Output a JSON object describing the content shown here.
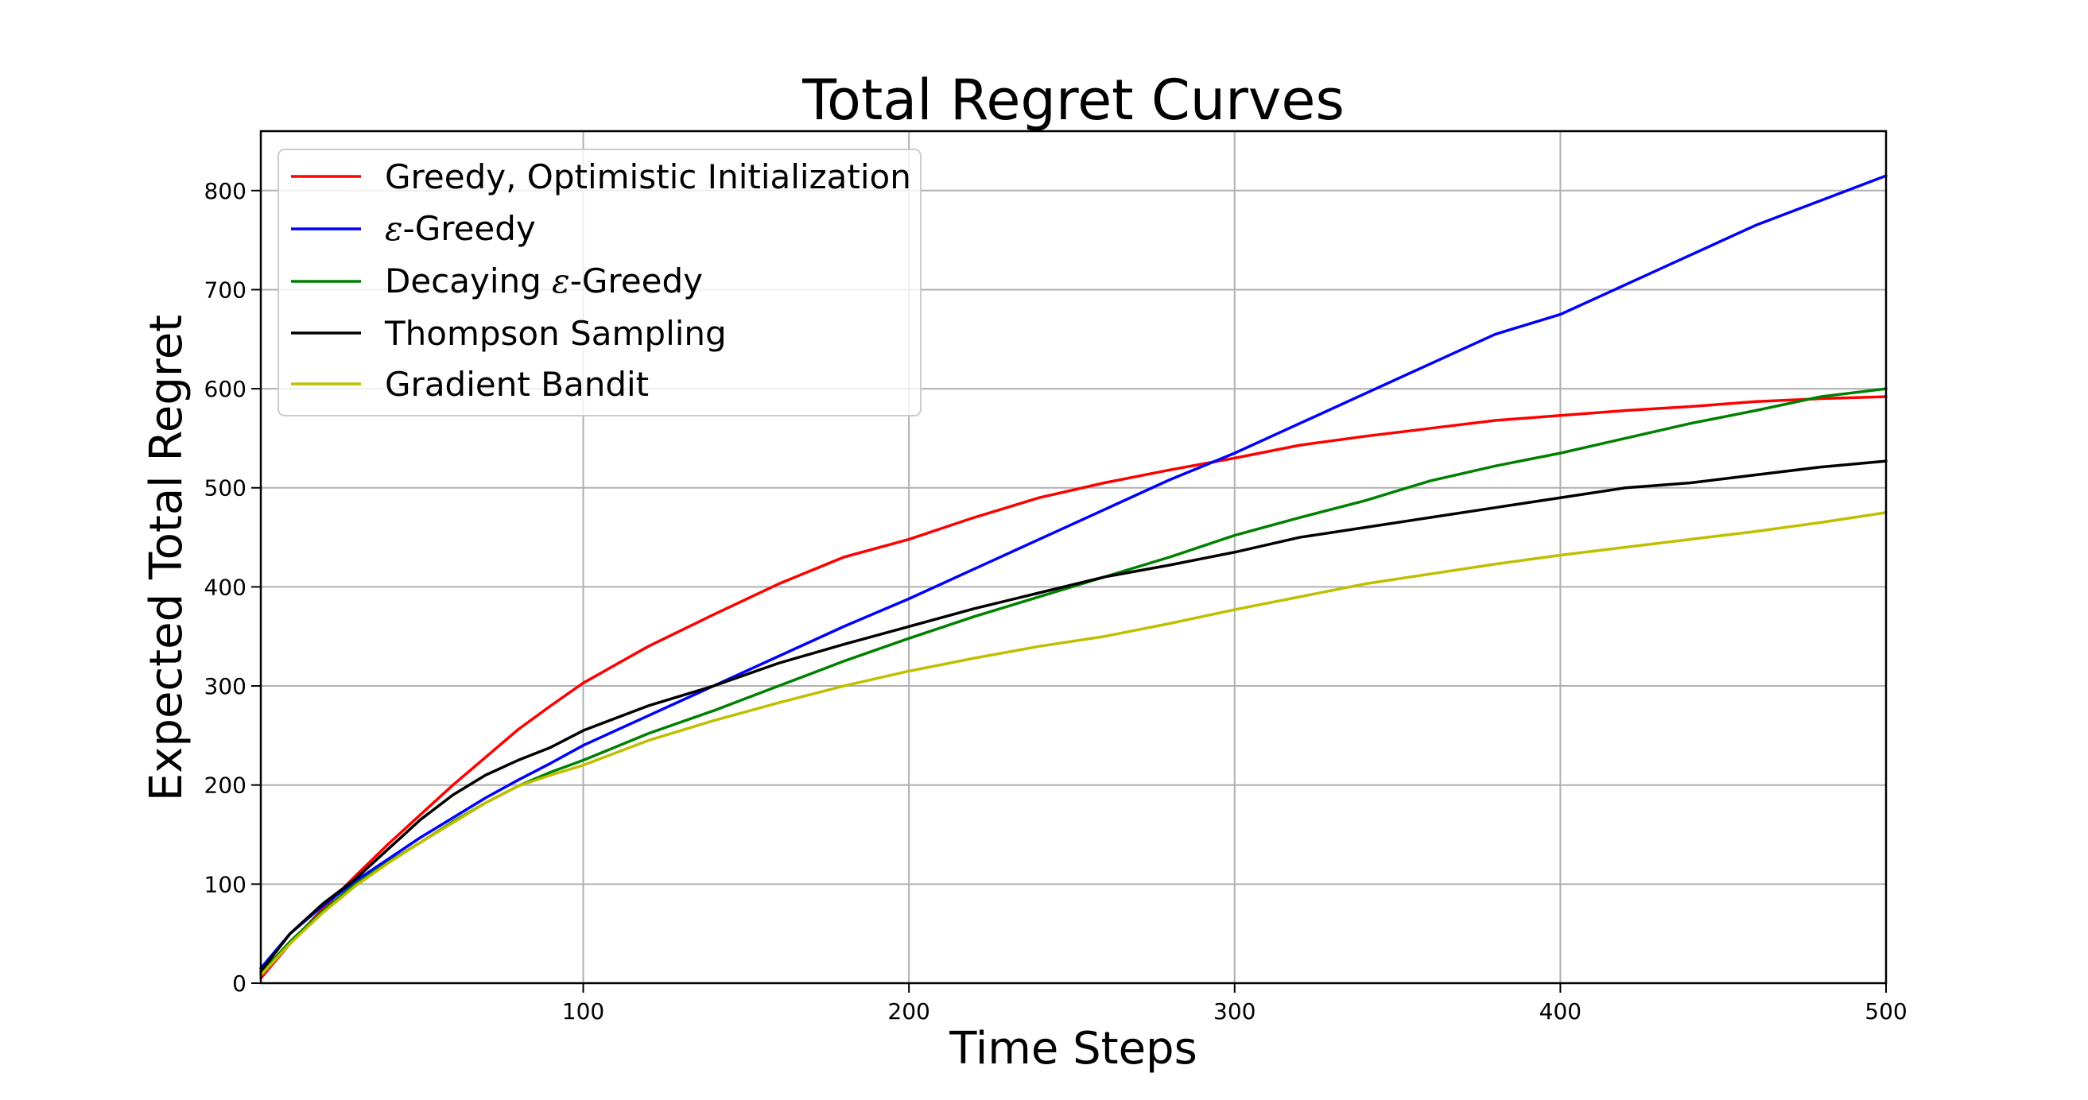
{
  "chart_data": {
    "type": "line",
    "title": "Total Regret Curves",
    "xlabel": "Time Steps",
    "ylabel": "Expected Total Regret",
    "xlim": [
      1,
      500
    ],
    "ylim": [
      0,
      860
    ],
    "grid": true,
    "legend_position": "top-left",
    "x_ticks": [
      100,
      200,
      300,
      400,
      500
    ],
    "y_ticks": [
      0,
      100,
      200,
      300,
      400,
      500,
      600,
      700,
      800
    ],
    "x_tick_labels": [
      "100",
      "200",
      "300",
      "400",
      "500"
    ],
    "y_tick_labels": [
      "0",
      "100",
      "200",
      "300",
      "400",
      "500",
      "600",
      "700",
      "800"
    ],
    "x": [
      1,
      10,
      20,
      30,
      40,
      50,
      60,
      70,
      80,
      90,
      100,
      120,
      140,
      160,
      180,
      200,
      220,
      240,
      260,
      280,
      300,
      320,
      340,
      360,
      380,
      400,
      420,
      440,
      460,
      480,
      500
    ],
    "series": [
      {
        "name": "Greedy, Optimistic Initialization",
        "legend_label": "Greedy, Optimistic Initialization",
        "color": "#ff0000",
        "values": [
          5,
          40,
          75,
          108,
          140,
          170,
          200,
          228,
          256,
          280,
          303,
          340,
          372,
          403,
          430,
          448,
          470,
          490,
          505,
          518,
          530,
          543,
          552,
          560,
          568,
          573,
          578,
          582,
          587,
          590,
          592
        ]
      },
      {
        "name": "ε-Greedy",
        "legend_label": "-Greedy",
        "legend_symbol": "ε",
        "color": "#0000ff",
        "values": [
          15,
          50,
          78,
          103,
          125,
          147,
          167,
          187,
          205,
          222,
          240,
          270,
          300,
          330,
          360,
          388,
          418,
          448,
          478,
          508,
          535,
          565,
          595,
          625,
          655,
          675,
          705,
          735,
          765,
          790,
          815
        ]
      },
      {
        "name": "Decaying ε-Greedy",
        "legend_label": "Decaying -Greedy",
        "legend_prefix": "Decaying ",
        "legend_suffix": "-Greedy",
        "legend_symbol": "ε",
        "color": "#008000",
        "values": [
          10,
          42,
          73,
          100,
          122,
          142,
          163,
          182,
          199,
          213,
          225,
          252,
          275,
          300,
          325,
          348,
          370,
          390,
          410,
          430,
          452,
          470,
          487,
          507,
          522,
          535,
          550,
          565,
          578,
          592,
          600
        ]
      },
      {
        "name": "Thompson Sampling",
        "legend_label": "Thompson Sampling",
        "color": "#000000",
        "values": [
          12,
          50,
          80,
          105,
          135,
          165,
          190,
          210,
          225,
          238,
          255,
          280,
          300,
          323,
          342,
          360,
          378,
          394,
          410,
          422,
          435,
          450,
          460,
          470,
          480,
          490,
          500,
          505,
          513,
          521,
          527
        ]
      },
      {
        "name": "Gradient Bandit",
        "legend_label": "Gradient Bandit",
        "color": "#bfbf00",
        "values": [
          8,
          40,
          71,
          98,
          121,
          142,
          162,
          182,
          199,
          210,
          220,
          245,
          265,
          283,
          300,
          315,
          328,
          340,
          350,
          363,
          377,
          390,
          403,
          413,
          423,
          432,
          440,
          448,
          456,
          465,
          475
        ]
      }
    ]
  }
}
